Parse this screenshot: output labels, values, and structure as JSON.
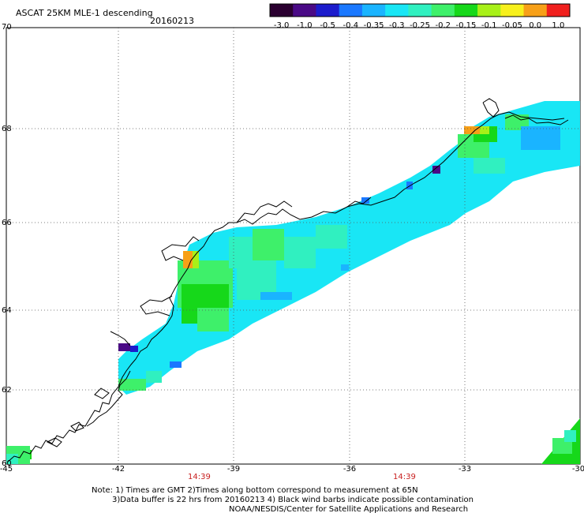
{
  "header": {
    "title": "ASCAT 25KM MLE-1 descending",
    "date": "20160213"
  },
  "colorbar": {
    "labels": [
      "-3.0",
      "-1.0",
      "-0.5",
      "-0.4",
      "-0.35",
      "-0.3",
      "-0.25",
      "-0.2",
      "-0.15",
      "-0.1",
      "-0.05",
      "0.0",
      "1.0"
    ],
    "colors": [
      "#2a0030",
      "#4a0a86",
      "#1c1ccc",
      "#1a78ff",
      "#1ab4ff",
      "#19e6f5",
      "#30f0c0",
      "#3ef06a",
      "#16d81a",
      "#a8f018",
      "#f7f01c",
      "#f7a018",
      "#f0201e"
    ]
  },
  "axes": {
    "lat_labels": [
      "70",
      "68",
      "66",
      "64",
      "62",
      "60"
    ],
    "lon_labels": [
      "-45",
      "-42",
      "-39",
      "-36",
      "-33",
      "-30"
    ],
    "time_labels": [
      "14:39",
      "14:39"
    ]
  },
  "notes": {
    "line1": "Note: 1) Times are GMT 2)Times along bottom correspond to measurement at 65N",
    "line2": "3)Data buffer is 22 hrs from 20160213 4) Black wind barbs indicate possible contamination",
    "line3": "NOAA/NESDIS/Center for Satellite Applications and Research"
  },
  "map": {
    "lat_range": [
      60,
      70
    ],
    "lon_range": [
      -45,
      -30
    ],
    "grid": true
  }
}
